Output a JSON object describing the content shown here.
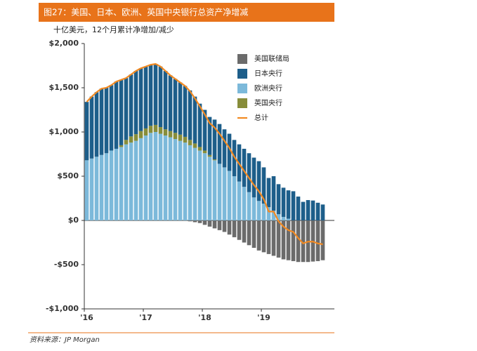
{
  "chart_data": {
    "type": "stacked_bar_line",
    "title": "图27：美国、日本、欧洲、英国中央银行总资产净增减",
    "subtitle": "十亿美元，12个月累计净增加/减少",
    "source": "资料来源：JP Morgan",
    "categories": [
      "'16",
      null,
      null,
      null,
      null,
      null,
      null,
      null,
      null,
      null,
      null,
      null,
      "'17",
      null,
      null,
      null,
      null,
      null,
      null,
      null,
      null,
      null,
      null,
      null,
      "'18",
      null,
      null,
      null,
      null,
      null,
      null,
      null,
      null,
      null,
      null,
      null,
      "'19",
      null,
      null,
      null,
      null,
      null,
      null,
      null,
      null,
      null,
      null,
      null,
      null
    ],
    "ylim": [
      -1000,
      2000
    ],
    "yticks": [
      {
        "value": -1000,
        "label": "-$1,000"
      },
      {
        "value": -500,
        "label": "-$500"
      },
      {
        "value": 0,
        "label": "$0"
      },
      {
        "value": 500,
        "label": "$500"
      },
      {
        "value": 1000,
        "label": "$1,000"
      },
      {
        "value": 1500,
        "label": "$1,500"
      },
      {
        "value": 2000,
        "label": "$2,000"
      }
    ],
    "series": [
      {
        "name": "美国联储局",
        "color": "#6b6b6b",
        "kind": "bar",
        "values": [
          0,
          0,
          0,
          0,
          0,
          0,
          0,
          0,
          0,
          0,
          0,
          0,
          0,
          0,
          0,
          0,
          0,
          0,
          0,
          0,
          0,
          -10,
          -20,
          -30,
          -50,
          -70,
          -90,
          -110,
          -130,
          -160,
          -190,
          -220,
          -250,
          -280,
          -310,
          -340,
          -360,
          -380,
          -400,
          -420,
          -440,
          -450,
          -460,
          -470,
          -470,
          -470,
          -465,
          -460,
          -450
        ]
      },
      {
        "name": "日本央行",
        "color": "#1d5e8a",
        "kind": "bar",
        "values": [
          660,
          700,
          730,
          750,
          740,
          740,
          760,
          740,
          700,
          700,
          715,
          710,
          700,
          690,
          690,
          685,
          660,
          630,
          610,
          590,
          575,
          560,
          530,
          490,
          460,
          430,
          450,
          450,
          430,
          420,
          410,
          420,
          430,
          440,
          450,
          450,
          410,
          330,
          390,
          340,
          330,
          320,
          330,
          270,
          210,
          230,
          225,
          200,
          180
        ]
      },
      {
        "name": "欧洲央行",
        "color": "#7cb9da",
        "kind": "bar",
        "values": [
          680,
          700,
          720,
          740,
          760,
          790,
          810,
          830,
          860,
          880,
          900,
          930,
          960,
          990,
          1000,
          980,
          960,
          940,
          920,
          900,
          880,
          850,
          820,
          790,
          760,
          720,
          680,
          640,
          600,
          560,
          500,
          440,
          380,
          320,
          260,
          220,
          190,
          150,
          110,
          70,
          40,
          20,
          0,
          0,
          0,
          0,
          0,
          0,
          0
        ]
      },
      {
        "name": "英国央行",
        "color": "#878d3a",
        "kind": "bar",
        "values": [
          0,
          0,
          0,
          0,
          0,
          0,
          0,
          20,
          50,
          70,
          75,
          80,
          80,
          80,
          80,
          75,
          70,
          70,
          70,
          70,
          65,
          60,
          50,
          40,
          30,
          20,
          10,
          0,
          0,
          0,
          0,
          0,
          0,
          0,
          0,
          0,
          0,
          0,
          0,
          0,
          0,
          0,
          0,
          0,
          0,
          0,
          0,
          0,
          0
        ]
      },
      {
        "name": "总计",
        "color": "#f28a22",
        "kind": "line",
        "values": [
          1340,
          1400,
          1450,
          1490,
          1500,
          1530,
          1570,
          1590,
          1610,
          1650,
          1690,
          1720,
          1740,
          1760,
          1770,
          1740,
          1690,
          1640,
          1600,
          1560,
          1520,
          1460,
          1380,
          1290,
          1200,
          1100,
          1050,
          980,
          900,
          820,
          720,
          640,
          560,
          480,
          400,
          330,
          240,
          100,
          100,
          -10,
          -70,
          -110,
          -130,
          -200,
          -260,
          -240,
          -240,
          -260,
          -270
        ]
      }
    ]
  }
}
